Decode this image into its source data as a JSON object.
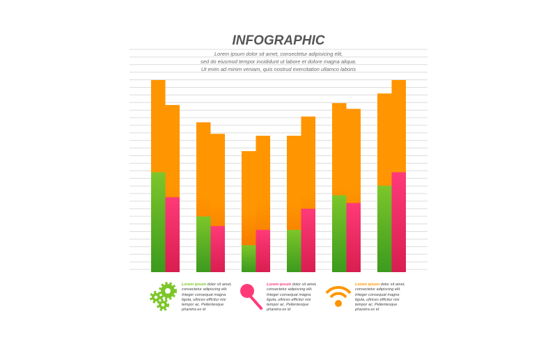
{
  "header": {
    "title": "INFOGRAPHIC",
    "subtitle_lines": [
      "Lorem ipsum dolor sit amet, consectetur adipisicing elit,",
      "sed do eiusmod tempor incididunt ut labore et dolore magna aliqua.",
      "Ut enim ad minim veniam, quis nostrud exercitation ullamco laboris"
    ]
  },
  "chart_data": {
    "type": "bar",
    "title": "INFOGRAPHIC",
    "grid": true,
    "ylim": [
      0,
      100
    ],
    "groups": [
      {
        "left_total": 100,
        "left_lower": 52,
        "right_total": 87,
        "right_lower": 39
      },
      {
        "left_total": 78,
        "left_lower": 29,
        "right_total": 72,
        "right_lower": 24
      },
      {
        "left_total": 63,
        "left_lower": 14,
        "right_total": 71,
        "right_lower": 22
      },
      {
        "left_total": 71,
        "left_lower": 22,
        "right_total": 81,
        "right_lower": 33
      },
      {
        "left_total": 88,
        "left_lower": 40,
        "right_total": 85,
        "right_lower": 36
      },
      {
        "left_total": 93,
        "left_lower": 45,
        "right_total": 100,
        "right_lower": 52
      }
    ],
    "colors": {
      "upper": "#ff9500",
      "left_lower": "#7dc62a",
      "right_lower": "#ff3a78"
    }
  },
  "captions": [
    {
      "icon": "gears-icon",
      "color": "#7dc62a",
      "lead": "Lorem ipsum",
      "text": " dolor sit amet, consectetur adipiscing elit. Integer consequat magna ligula, ultrices efficitur nisi tempor ac. Pellentesque pharetra ex id"
    },
    {
      "icon": "magnifier-icon",
      "color": "#ff3a78",
      "lead": "Lorem ipsum",
      "text": " dolor sit amet, consectetur adipiscing elit. Integer consequat magna ligula, ultrices efficitur nisi tempor ac. Pellentesque pharetra ex id"
    },
    {
      "icon": "wifi-icon",
      "color": "#ff9500",
      "lead": "Lorem ipsum",
      "text": " dolor sit amet, consectetur adipiscing elit. Integer consequat magna ligula, ultrices efficitur nisi tempor ac. Pellentesque pharetra ex id"
    }
  ]
}
